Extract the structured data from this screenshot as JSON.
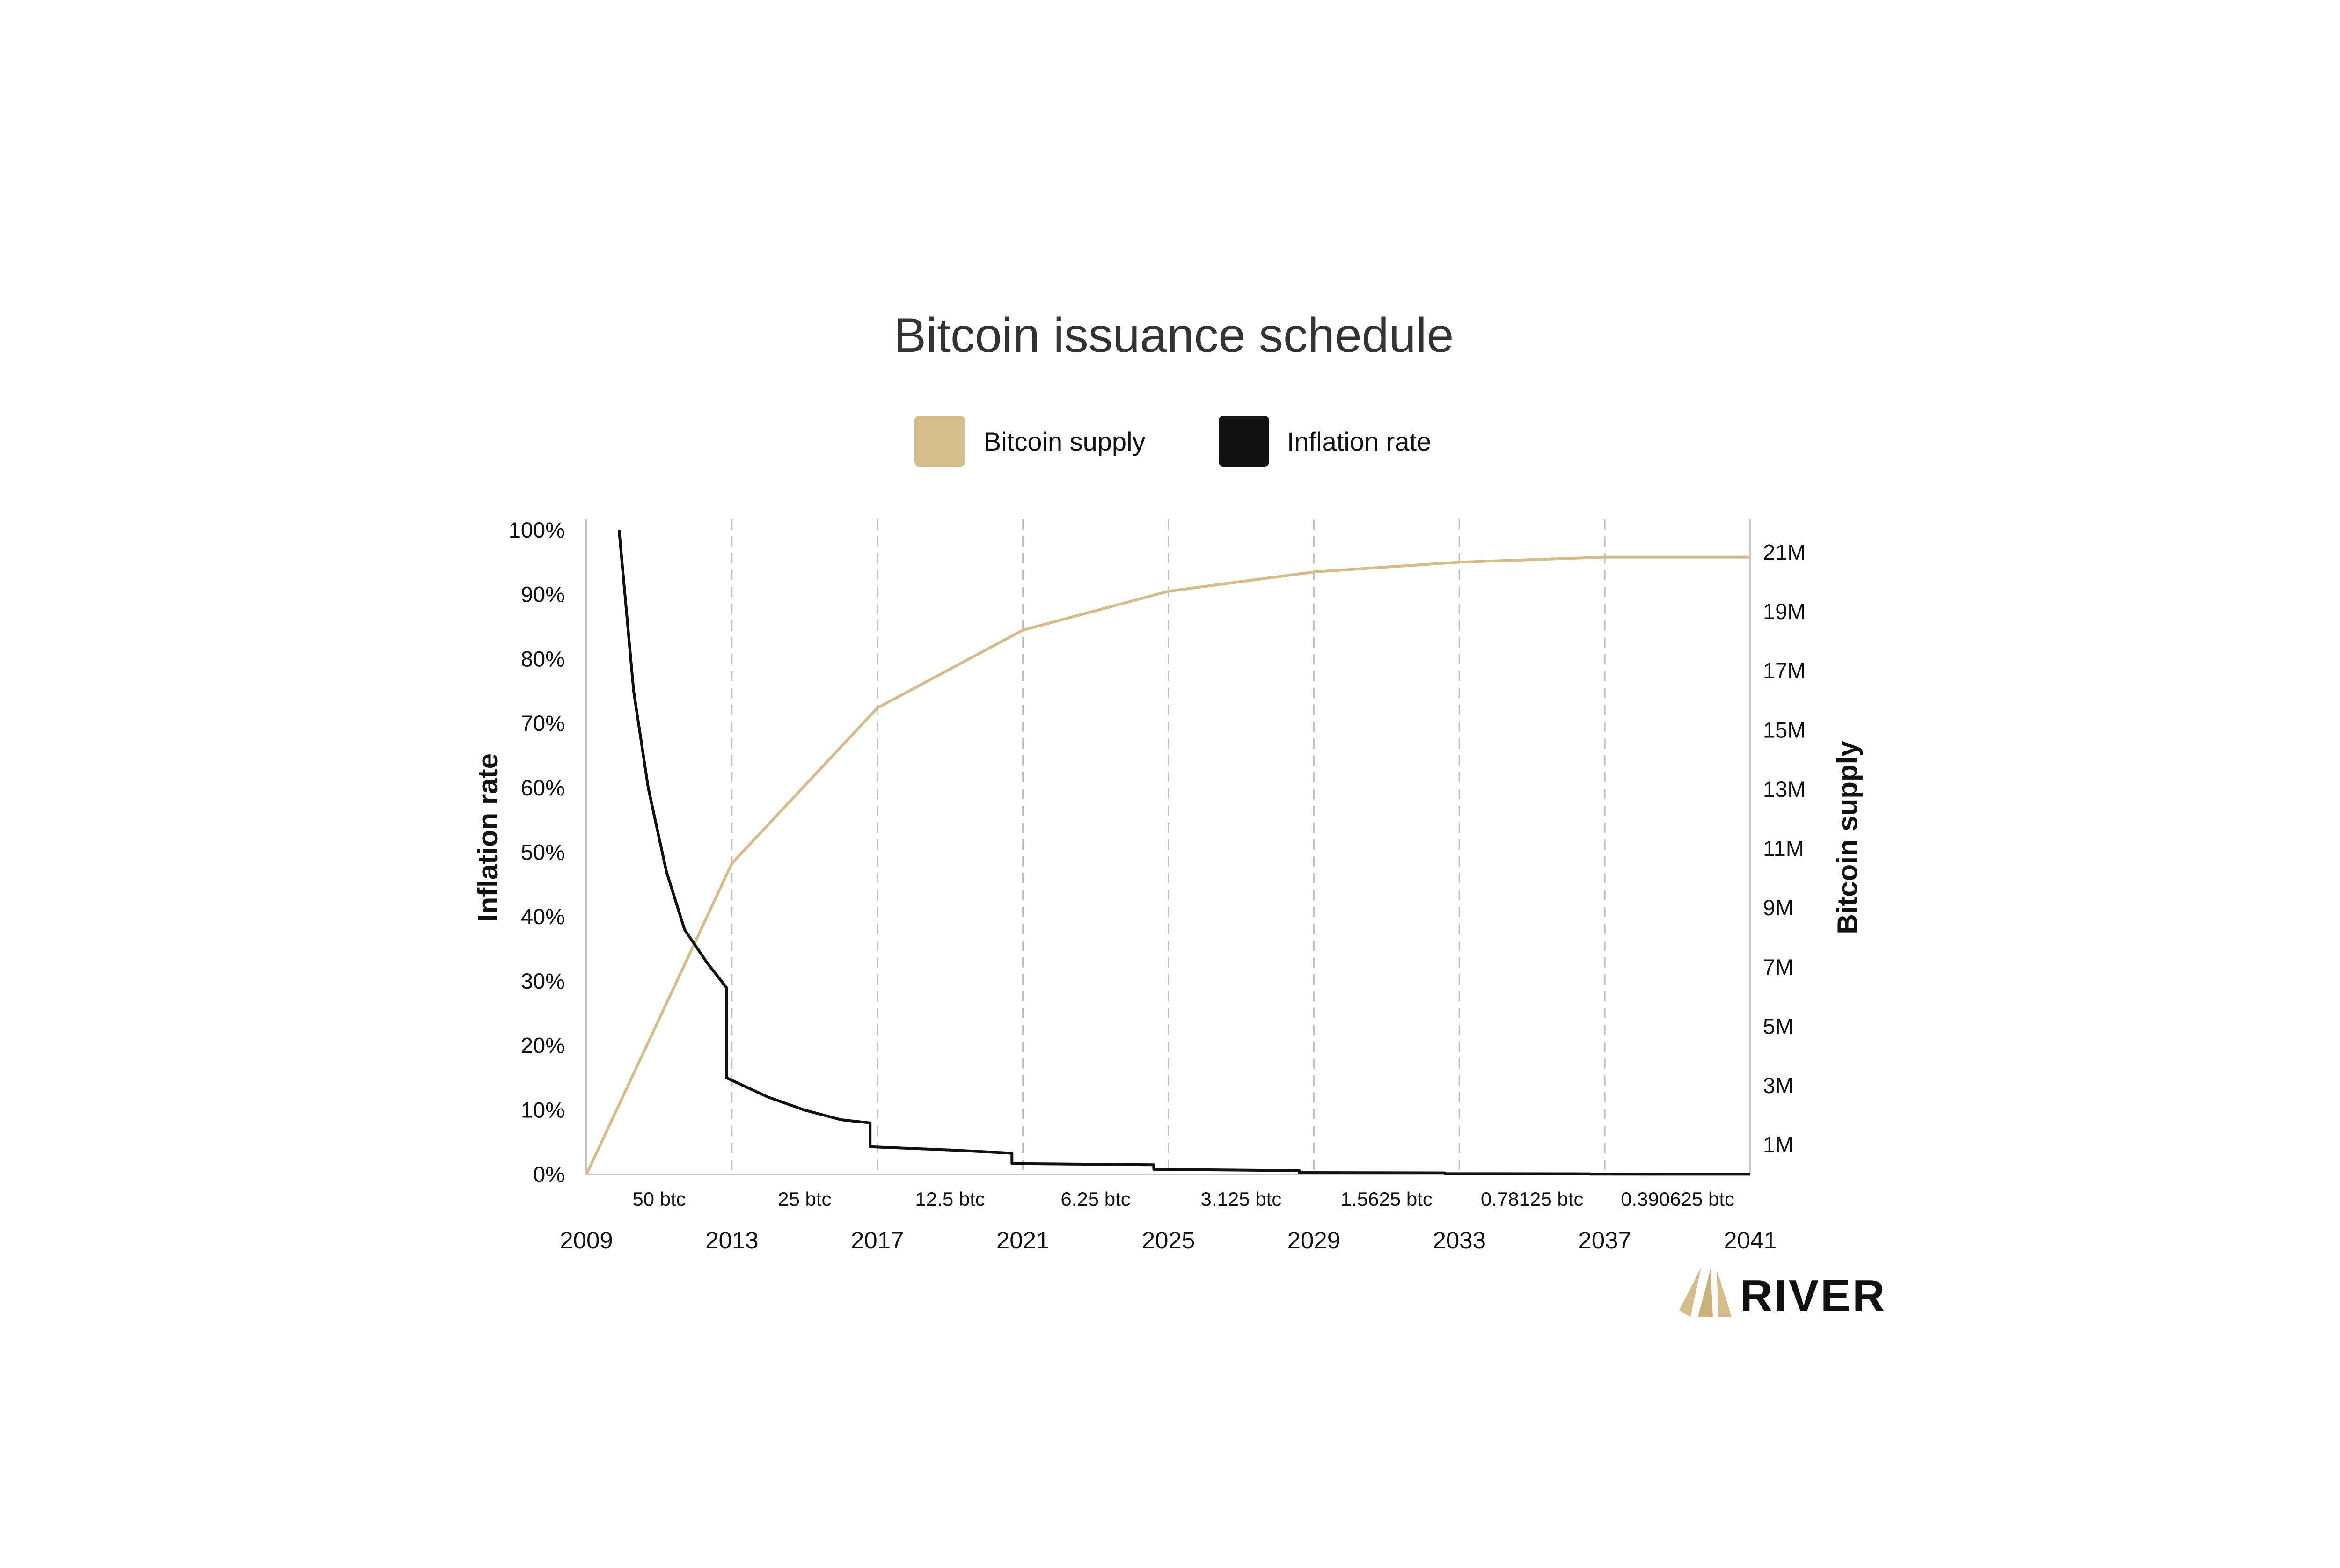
{
  "colors": {
    "supply": "#d4bd8a",
    "inflation": "#111111",
    "grid": "#bdbdbd",
    "axis": "#c8c8c8",
    "title": "#333333"
  },
  "chart_data": {
    "type": "line",
    "title": "Bitcoin issuance schedule",
    "legend": {
      "position": "top-center",
      "items": [
        "Bitcoin supply",
        "Inflation rate"
      ]
    },
    "y_left": {
      "label": "Inflation rate",
      "range": [
        0,
        100
      ],
      "ticks": [
        "0%",
        "10%",
        "20%",
        "30%",
        "40%",
        "50%",
        "60%",
        "70%",
        "80%",
        "90%",
        "100%"
      ]
    },
    "y_right": {
      "label": "Bitcoin supply",
      "range": [
        0,
        21.75
      ],
      "ticks": [
        "1M",
        "3M",
        "5M",
        "7M",
        "9M",
        "11M",
        "13M",
        "15M",
        "17M",
        "19M",
        "21M"
      ]
    },
    "x": {
      "range": [
        2009,
        2041
      ],
      "ticks": [
        "2009",
        "2013",
        "2017",
        "2021",
        "2025",
        "2029",
        "2033",
        "2037",
        "2041"
      ],
      "grid": "dashed vertical at halvings"
    },
    "block_rewards": [
      "50 btc",
      "25 btc",
      "12.5 btc",
      "6.25 btc",
      "3.125 btc",
      "1.5625 btc",
      "0.78125 btc",
      "0.390625 btc"
    ],
    "series": [
      {
        "name": "Bitcoin supply",
        "axis": "right",
        "unit": "M BTC",
        "points": [
          [
            2009,
            0
          ],
          [
            2013,
            10.5
          ],
          [
            2017,
            15.75
          ],
          [
            2021,
            18.375
          ],
          [
            2025,
            19.6875
          ],
          [
            2029,
            20.34
          ],
          [
            2033,
            20.67
          ],
          [
            2037,
            20.84
          ],
          [
            2041,
            20.84
          ]
        ]
      },
      {
        "name": "Inflation rate",
        "axis": "left",
        "unit": "%",
        "points": [
          [
            2009.9,
            100
          ],
          [
            2010.3,
            75
          ],
          [
            2010.7,
            60
          ],
          [
            2011.2,
            47
          ],
          [
            2011.7,
            38
          ],
          [
            2012.3,
            33
          ],
          [
            2012.85,
            29
          ],
          [
            2012.85,
            15
          ],
          [
            2014,
            12
          ],
          [
            2015,
            10
          ],
          [
            2016,
            8.5
          ],
          [
            2016.8,
            8
          ],
          [
            2016.8,
            4.3
          ],
          [
            2019,
            3.8
          ],
          [
            2020.7,
            3.3
          ],
          [
            2020.7,
            1.7
          ],
          [
            2024.6,
            1.5
          ],
          [
            2024.6,
            0.8
          ],
          [
            2028.6,
            0.6
          ],
          [
            2028.6,
            0.3
          ],
          [
            2032.6,
            0.25
          ],
          [
            2032.6,
            0.12
          ],
          [
            2036.6,
            0.1
          ],
          [
            2036.6,
            0.05
          ],
          [
            2041,
            0.04
          ]
        ]
      }
    ]
  },
  "brand": {
    "name": "RIVER"
  }
}
